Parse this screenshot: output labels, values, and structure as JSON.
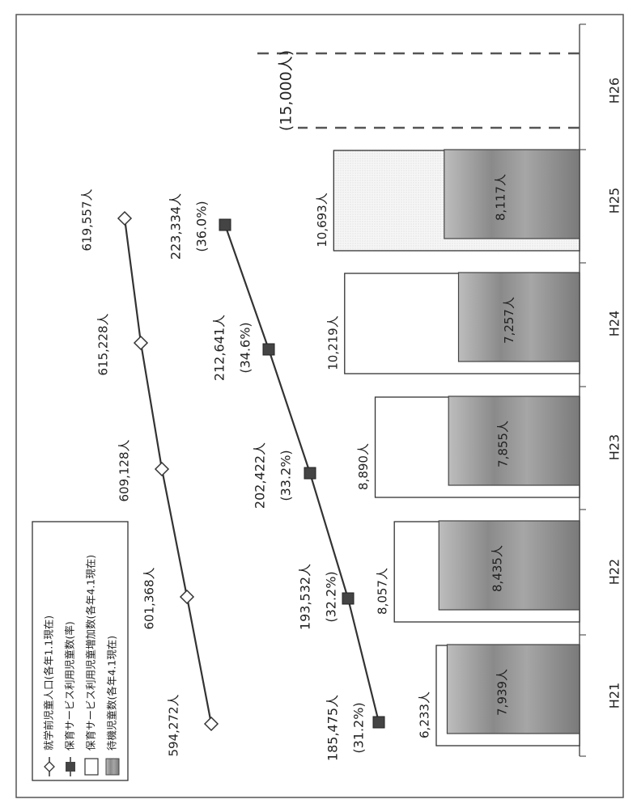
{
  "chart_data": {
    "type": "bar",
    "categories": [
      "H21",
      "H22",
      "H23",
      "H24",
      "H25",
      "H26"
    ],
    "ylim": [
      0,
      16000
    ],
    "series": [
      {
        "name": "保育サービス利用児童増加数(各年4.1現在)",
        "style": "white-bar",
        "values": [
          6233,
          8057,
          8890,
          10219,
          10693,
          null
        ],
        "labels": [
          "6,233人",
          "8,057人",
          "8,890人",
          "10,219人",
          "10,693人",
          ""
        ]
      },
      {
        "name": "待機児童数(各年4.1現在)",
        "style": "gray-bar",
        "values": [
          7939,
          8435,
          7855,
          7257,
          8117,
          15000
        ],
        "labels": [
          "7,939人",
          "8,435人",
          "7,855人",
          "7,257人",
          "8,117人",
          "(15,000人)"
        ],
        "projected": [
          false,
          false,
          false,
          false,
          false,
          true
        ]
      },
      {
        "name": "就学前児童人口(各年1.1現在)",
        "style": "diamond-line",
        "values": [
          594272,
          601368,
          609128,
          615228,
          619557,
          null
        ],
        "labels": [
          "594,272人",
          "601,368人",
          "609,128人",
          "615,228人",
          "619,557人",
          ""
        ]
      },
      {
        "name": "保育サービス利用児童数(率)",
        "style": "square-line",
        "values": [
          185475,
          193532,
          202422,
          212641,
          223334,
          null
        ],
        "rates": [
          31.2,
          32.2,
          33.2,
          34.6,
          36.0,
          null
        ],
        "labels": [
          "185,475人",
          "193,532人",
          "202,422人",
          "212,641人",
          "223,334人",
          ""
        ],
        "rate_labels": [
          "(31.2%)",
          "(32.2%)",
          "(33.2%)",
          "(34.6%)",
          "(36.0%)",
          ""
        ]
      }
    ],
    "legend_placement": "top-left",
    "grid": false,
    "colors": {
      "bar_gray": "#8f8f8f",
      "bar_white": "#ffffff",
      "line": "#333333",
      "square": "#444444"
    }
  }
}
